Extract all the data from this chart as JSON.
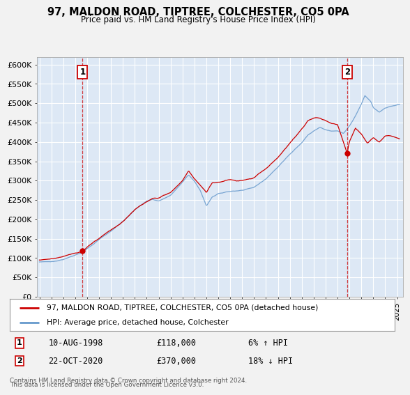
{
  "title": "97, MALDON ROAD, TIPTREE, COLCHESTER, CO5 0PA",
  "subtitle": "Price paid vs. HM Land Registry's House Price Index (HPI)",
  "sale1_date": "10-AUG-1998",
  "sale1_price": 118000,
  "sale1_label": "6% ↑ HPI",
  "sale1_year": 1998.61,
  "sale2_date": "22-OCT-2020",
  "sale2_price": 370000,
  "sale2_label": "18% ↓ HPI",
  "sale2_year": 2020.8,
  "legend_line1": "97, MALDON ROAD, TIPTREE, COLCHESTER, CO5 0PA (detached house)",
  "legend_line2": "HPI: Average price, detached house, Colchester",
  "footnote": "Contains HM Land Registry data © Crown copyright and database right 2024.\nThis data is licensed under the Open Government Licence v3.0.",
  "line_red": "#cc0000",
  "line_blue": "#6699cc",
  "plot_bg": "#dde8f5",
  "grid_color": "#ffffff",
  "ylim": [
    0,
    620000
  ],
  "yticks": [
    0,
    50000,
    100000,
    150000,
    200000,
    250000,
    300000,
    350000,
    400000,
    450000,
    500000,
    550000,
    600000
  ],
  "xlim_start": 1994.8,
  "xlim_end": 2025.5,
  "hpi_anchors_t": [
    1995.0,
    1996.0,
    1997.0,
    1998.0,
    1998.5,
    1999.0,
    1999.5,
    2000.0,
    2001.0,
    2002.0,
    2003.0,
    2004.0,
    2004.5,
    2005.0,
    2006.0,
    2007.0,
    2007.5,
    2008.0,
    2008.5,
    2009.0,
    2009.5,
    2010.0,
    2011.0,
    2012.0,
    2013.0,
    2014.0,
    2015.0,
    2016.0,
    2017.0,
    2017.5,
    2018.0,
    2018.5,
    2019.0,
    2019.5,
    2020.0,
    2020.5,
    2021.0,
    2021.5,
    2022.0,
    2022.3,
    2022.8,
    2023.0,
    2023.5,
    2024.0,
    2024.5,
    2025.2
  ],
  "hpi_anchors_p": [
    90000,
    92000,
    97000,
    107000,
    113000,
    125000,
    135000,
    148000,
    170000,
    195000,
    225000,
    248000,
    252000,
    248000,
    262000,
    295000,
    315000,
    300000,
    275000,
    235000,
    258000,
    268000,
    272000,
    275000,
    282000,
    305000,
    335000,
    368000,
    398000,
    418000,
    428000,
    438000,
    432000,
    428000,
    428000,
    422000,
    442000,
    468000,
    498000,
    520000,
    505000,
    490000,
    478000,
    488000,
    493000,
    498000
  ],
  "red_anchors_t": [
    1995.0,
    1996.0,
    1997.0,
    1998.0,
    1998.61,
    1999.5,
    2000.5,
    2002.0,
    2003.0,
    2004.5,
    2005.0,
    2006.0,
    2007.0,
    2007.5,
    2008.0,
    2009.0,
    2009.5,
    2010.5,
    2011.0,
    2012.0,
    2013.0,
    2014.0,
    2015.0,
    2016.0,
    2017.0,
    2017.5,
    2018.0,
    2018.5,
    2019.0,
    2019.5,
    2020.0,
    2020.8,
    2021.0,
    2021.5,
    2022.0,
    2022.5,
    2023.0,
    2023.5,
    2024.0,
    2024.5,
    2025.2
  ],
  "red_anchors_p": [
    95000,
    97000,
    103000,
    112000,
    118000,
    140000,
    162000,
    195000,
    225000,
    255000,
    255000,
    270000,
    300000,
    325000,
    305000,
    268000,
    295000,
    298000,
    302000,
    300000,
    308000,
    330000,
    360000,
    398000,
    435000,
    455000,
    462000,
    462000,
    455000,
    448000,
    445000,
    370000,
    400000,
    435000,
    420000,
    395000,
    410000,
    400000,
    415000,
    415000,
    408000
  ]
}
